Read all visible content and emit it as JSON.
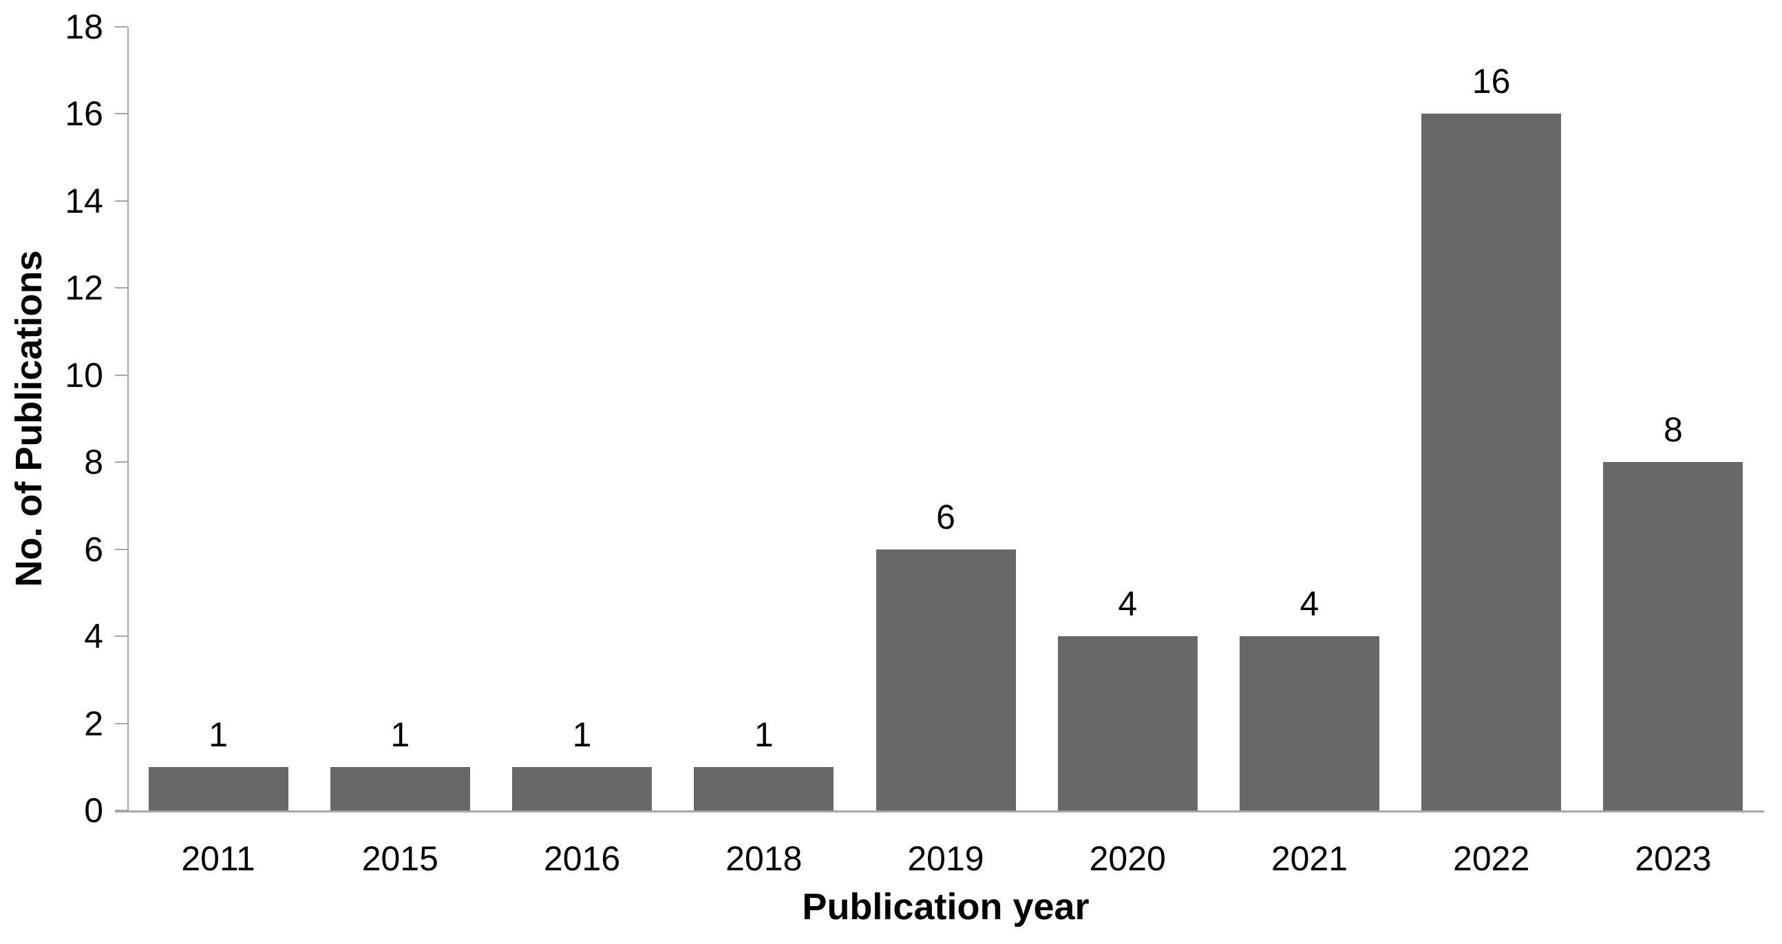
{
  "chart_data": {
    "type": "bar",
    "categories": [
      "2011",
      "2015",
      "2016",
      "2018",
      "2019",
      "2020",
      "2021",
      "2022",
      "2023"
    ],
    "values": [
      1,
      1,
      1,
      1,
      6,
      4,
      4,
      16,
      8
    ],
    "title": "",
    "xlabel": "Publication year",
    "ylabel": "No. of Publications",
    "ylim": [
      0,
      18
    ],
    "yticks": [
      0,
      2,
      4,
      6,
      8,
      10,
      12,
      14,
      16,
      18
    ],
    "data_labels": [
      1,
      1,
      1,
      1,
      6,
      4,
      4,
      16,
      8
    ],
    "legend": "none",
    "grid": false,
    "colors": {
      "bar_fill": "#686868",
      "axis_line": "#a6a6a6",
      "text": "#000000",
      "background": "#ffffff"
    }
  }
}
